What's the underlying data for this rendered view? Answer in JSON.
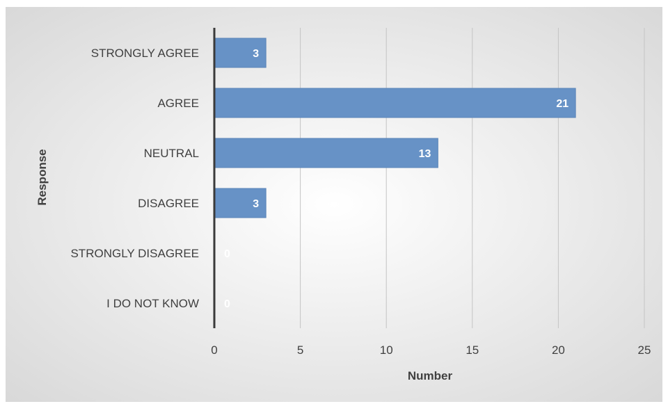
{
  "chart_data": {
    "type": "bar",
    "orientation": "horizontal",
    "categories": [
      "STRONGLY AGREE",
      "AGREE",
      "NEUTRAL",
      "DISAGREE",
      "STRONGLY DISAGREE",
      "I DO NOT KNOW"
    ],
    "values": [
      3,
      21,
      13,
      3,
      0,
      0
    ],
    "data_labels": [
      "3",
      "21",
      "13",
      "3",
      "0",
      "0"
    ],
    "x_ticks": [
      "0",
      "5",
      "10",
      "15",
      "20",
      "25"
    ],
    "xlim": [
      0,
      25
    ],
    "xlabel": "Number",
    "ylabel": "Response",
    "grid": "vertical",
    "legend": "none",
    "colors": {
      "bar": "#6792c6",
      "bar_border": "#5a84b8",
      "background_light": "#ffffff",
      "background_dark": "#d6d6d6",
      "gridline": "#c4c4c4",
      "axis_line": "#3a3a3a",
      "label_text": "#404040",
      "data_label": "#ffffff"
    }
  }
}
